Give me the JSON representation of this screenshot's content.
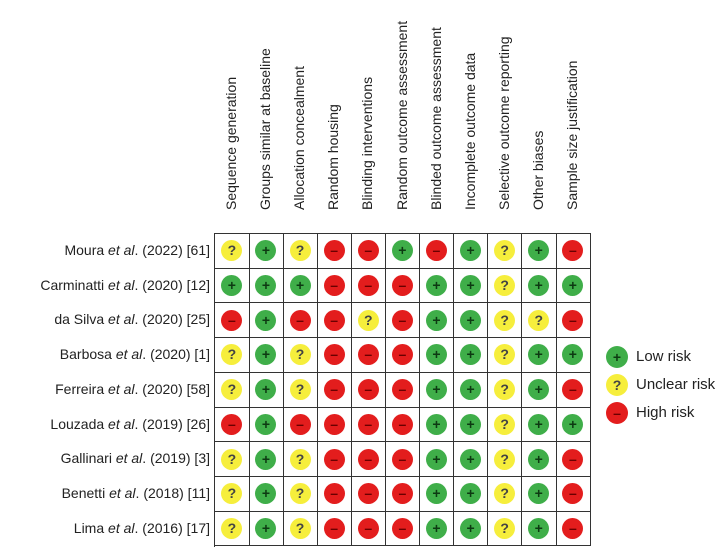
{
  "columns": [
    "Sequence generation",
    "Groups similar at baseline",
    "Allocation concealment",
    "Random housing",
    "Blinding interventions",
    "Random outcome assessment",
    "Blinded outcome assessment",
    "Incomplete outcome data",
    "Selective outcome reporting",
    "Other biases",
    "Sample size justification"
  ],
  "rows": [
    {
      "author": "Moura",
      "etal": "et al",
      "rest": ". (2022) [61]",
      "ratings": [
        "unclear",
        "low",
        "unclear",
        "high",
        "high",
        "low",
        "high",
        "low",
        "unclear",
        "low",
        "high"
      ]
    },
    {
      "author": "Carminatti",
      "etal": "et al",
      "rest": ". (2020) [12]",
      "ratings": [
        "low",
        "low",
        "low",
        "high",
        "high",
        "high",
        "low",
        "low",
        "unclear",
        "low",
        "low"
      ]
    },
    {
      "author": "da Silva",
      "etal": "et al",
      "rest": ". (2020) [25]",
      "ratings": [
        "high",
        "low",
        "high",
        "high",
        "unclear",
        "high",
        "low",
        "low",
        "unclear",
        "unclear",
        "high"
      ]
    },
    {
      "author": "Barbosa",
      "etal": "et al",
      "rest": ". (2020) [1]",
      "ratings": [
        "unclear",
        "low",
        "unclear",
        "high",
        "high",
        "high",
        "low",
        "low",
        "unclear",
        "low",
        "low"
      ]
    },
    {
      "author": "Ferreira",
      "etal": "et al",
      "rest": ". (2020) [58]",
      "ratings": [
        "unclear",
        "low",
        "unclear",
        "high",
        "high",
        "high",
        "low",
        "low",
        "unclear",
        "low",
        "high"
      ]
    },
    {
      "author": "Louzada",
      "etal": "et al",
      "rest": ". (2019) [26]",
      "ratings": [
        "high",
        "low",
        "high",
        "high",
        "high",
        "high",
        "low",
        "low",
        "unclear",
        "low",
        "low"
      ]
    },
    {
      "author": "Gallinari",
      "etal": "et al",
      "rest": ". (2019) [3]",
      "ratings": [
        "unclear",
        "low",
        "unclear",
        "high",
        "high",
        "high",
        "low",
        "low",
        "unclear",
        "low",
        "high"
      ]
    },
    {
      "author": "Benetti",
      "etal": "et al",
      "rest": ". (2018) [11]",
      "ratings": [
        "unclear",
        "low",
        "unclear",
        "high",
        "high",
        "high",
        "low",
        "low",
        "unclear",
        "low",
        "high"
      ]
    },
    {
      "author": "Lima",
      "etal": "et al",
      "rest": ". (2016) [17]",
      "ratings": [
        "unclear",
        "low",
        "unclear",
        "high",
        "high",
        "high",
        "low",
        "low",
        "unclear",
        "low",
        "high"
      ]
    }
  ],
  "symbols": {
    "low": "+",
    "unclear": "?",
    "high": "–"
  },
  "legend": [
    {
      "key": "low",
      "label": "Low risk"
    },
    {
      "key": "unclear",
      "label": "Unclear risk"
    },
    {
      "key": "high",
      "label": "High risk"
    }
  ],
  "colors": {
    "low": "#3fae49",
    "unclear": "#f6ee3c",
    "high": "#e31d1d",
    "grid": "#333333"
  }
}
